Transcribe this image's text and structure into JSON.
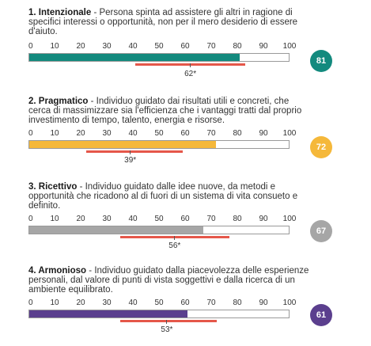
{
  "scale_ticks": [
    "0",
    "10",
    "20",
    "30",
    "40",
    "50",
    "60",
    "70",
    "80",
    "90",
    "100"
  ],
  "profiles": [
    {
      "number": "1.",
      "title": "Intenzionale",
      "description": "Persona spinta ad assistere gli altri in ragione di specifici interessi o opportunità, non per il mero desiderio di essere d'aiuto.",
      "score": 81,
      "score_label": "81",
      "benchmark": 62,
      "benchmark_label": "62*",
      "benchmark_range": [
        41,
        83
      ],
      "color": "#138a7e"
    },
    {
      "number": "2.",
      "title": "Pragmatico",
      "description": "Individuo guidato dai risultati utili e concreti, che cerca di massimizzare sia l'efficienza che i vantaggi tratti dal proprio investimento di tempo, talento, energia e risorse.",
      "score": 72,
      "score_label": "72",
      "benchmark": 39,
      "benchmark_label": "39*",
      "benchmark_range": [
        22,
        59
      ],
      "color": "#f5b83a"
    },
    {
      "number": "3.",
      "title": "Ricettivo",
      "description": "Individuo guidato dalle idee nuove, da metodi e opportunità che ricadono al di fuori di un sistema di vita consueto e definito.",
      "score": 67,
      "score_label": "67",
      "benchmark": 56,
      "benchmark_label": "56*",
      "benchmark_range": [
        35,
        77
      ],
      "color": "#a6a6a6"
    },
    {
      "number": "4.",
      "title": "Armonioso",
      "description": "Individuo guidato dalla piacevolezza delle esperienze personali, dal valore di punti di vista soggettivi e dalla ricerca di un ambiente equilibrato.",
      "score": 61,
      "score_label": "61",
      "benchmark": 53,
      "benchmark_label": "53*",
      "benchmark_range": [
        35,
        72
      ],
      "color": "#5b3f8e"
    }
  ],
  "benchmark_color": "#e5574a"
}
